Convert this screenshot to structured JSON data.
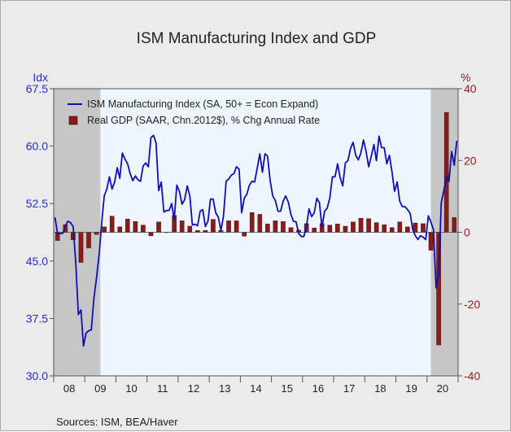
{
  "chart_data": {
    "type": "bar+line",
    "title": "ISM Manufacturing Index and GDP",
    "source": "Sources:  ISM, BEA/Haver",
    "left_axis": {
      "label": "Idx",
      "ylim": [
        30,
        67.5
      ],
      "ticks": [
        "67.5",
        "60.0",
        "52.5",
        "45.0",
        "37.5",
        "30.0"
      ],
      "color": "#1a1aa8"
    },
    "right_axis": {
      "label": "%",
      "ylim": [
        -40,
        40
      ],
      "ticks": [
        "40",
        "20",
        "0",
        "-20",
        "-40"
      ],
      "color": "#8b1a1a"
    },
    "x_tick_labels": [
      "08",
      "09",
      "10",
      "11",
      "12",
      "13",
      "14",
      "15",
      "16",
      "17",
      "18",
      "19",
      "20"
    ],
    "xlim": [
      2008.0,
      2021.0
    ],
    "recessions": [
      [
        2008.0,
        2009.5
      ],
      [
        2020.125,
        2021.0
      ]
    ],
    "legend": {
      "position": "top-left",
      "items": [
        {
          "label": "ISM Manufacturing Index (SA, 50+ = Econ Expand)",
          "type": "line",
          "color": "#1010b0"
        },
        {
          "label": "Real GDP (SAAR, Chn.2012$), % Chg Annual Rate",
          "type": "bar",
          "color": "#8b1a1a"
        }
      ]
    },
    "series": [
      {
        "name": "ISM Manufacturing Index (SA, 50+ = Econ Expand)",
        "type": "line",
        "axis": "left",
        "start": "2008-01",
        "frequency": "monthly",
        "values": [
          50.7,
          48.5,
          48.6,
          48.6,
          49.6,
          50.2,
          50.0,
          49.5,
          44.8,
          38.0,
          38.6,
          33.9,
          35.6,
          35.9,
          36.0,
          40.1,
          42.8,
          45.8,
          49.9,
          53.5,
          54.4,
          56.0,
          54.4,
          55.3,
          57.2,
          55.8,
          59.1,
          58.3,
          57.7,
          56.4,
          55.5,
          56.1,
          55.6,
          55.4,
          57.4,
          57.8,
          57.3,
          61.1,
          61.4,
          60.4,
          54.2,
          55.3,
          51.4,
          51.6,
          51.6,
          52.5,
          50.4,
          54.9,
          54.1,
          52.4,
          53.0,
          54.8,
          53.5,
          49.7,
          49.8,
          49.6,
          51.5,
          51.7,
          49.5,
          50.2,
          53.1,
          53.1,
          51.3,
          50.7,
          49.0,
          50.9,
          55.4,
          55.7,
          56.2,
          56.4,
          57.3,
          57.0,
          51.3,
          53.2,
          53.7,
          54.9,
          55.4,
          55.3,
          57.1,
          59.0,
          56.6,
          59.0,
          58.7,
          55.5,
          53.5,
          52.9,
          51.5,
          51.5,
          52.8,
          53.5,
          52.7,
          51.1,
          50.2,
          50.1,
          48.6,
          48.2,
          48.2,
          49.5,
          51.8,
          50.8,
          51.3,
          53.2,
          52.6,
          49.4,
          51.5,
          51.9,
          53.2,
          56.0,
          56.0,
          57.7,
          55.9,
          54.8,
          57.8,
          58.1,
          59.7,
          60.5,
          58.8,
          58.2,
          59.1,
          60.8,
          59.3,
          57.3,
          58.7,
          60.2,
          58.1,
          61.3,
          59.8,
          59.8,
          57.7,
          58.8,
          56.6,
          54.1,
          55.3,
          52.8,
          52.1,
          52.1,
          51.7,
          51.2,
          49.1,
          48.3,
          47.8,
          48.3,
          48.1,
          47.8,
          50.9,
          50.1,
          49.1,
          41.5,
          43.1,
          52.6,
          54.2,
          56.0,
          55.4,
          59.3,
          57.5,
          60.7
        ]
      },
      {
        "name": "Real GDP (SAAR, Chn.2012$), % Chg Annual Rate",
        "type": "bar",
        "axis": "right",
        "quarters": [
          "2008Q1",
          "2008Q2",
          "2008Q3",
          "2008Q4",
          "2009Q1",
          "2009Q2",
          "2009Q3",
          "2009Q4",
          "2010Q1",
          "2010Q2",
          "2010Q3",
          "2010Q4",
          "2011Q1",
          "2011Q2",
          "2011Q3",
          "2011Q4",
          "2012Q1",
          "2012Q2",
          "2012Q3",
          "2012Q4",
          "2013Q1",
          "2013Q2",
          "2013Q3",
          "2013Q4",
          "2014Q1",
          "2014Q2",
          "2014Q3",
          "2014Q4",
          "2015Q1",
          "2015Q2",
          "2015Q3",
          "2015Q4",
          "2016Q1",
          "2016Q2",
          "2016Q3",
          "2016Q4",
          "2017Q1",
          "2017Q2",
          "2017Q3",
          "2017Q4",
          "2018Q1",
          "2018Q2",
          "2018Q3",
          "2018Q4",
          "2019Q1",
          "2019Q2",
          "2019Q3",
          "2019Q4",
          "2020Q1",
          "2020Q2",
          "2020Q3",
          "2020Q4"
        ],
        "values": [
          -2.3,
          2.1,
          -2.1,
          -8.4,
          -4.4,
          -0.6,
          1.5,
          4.5,
          1.5,
          3.7,
          3.0,
          2.0,
          -1.0,
          2.9,
          -0.1,
          4.7,
          3.2,
          1.7,
          0.5,
          0.5,
          3.6,
          0.5,
          3.2,
          3.2,
          -1.1,
          5.5,
          5.0,
          2.3,
          3.2,
          3.0,
          1.3,
          0.6,
          2.4,
          1.2,
          2.4,
          2.0,
          2.3,
          1.7,
          2.9,
          3.9,
          3.8,
          2.7,
          2.1,
          1.3,
          2.9,
          1.5,
          2.6,
          2.4,
          -5.0,
          -31.4,
          33.4,
          4.1
        ]
      }
    ]
  }
}
